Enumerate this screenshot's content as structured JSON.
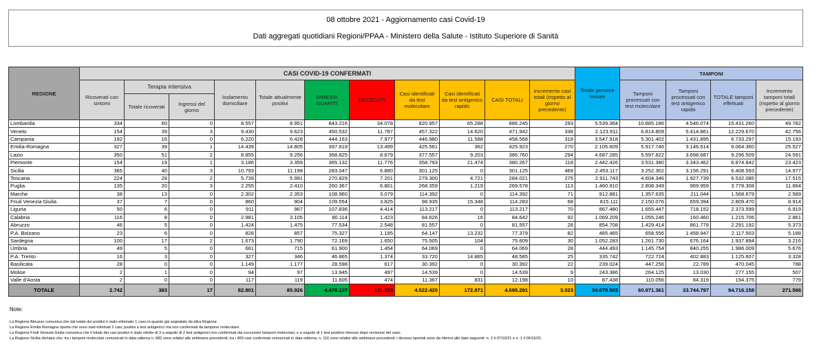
{
  "title": "08 ottobre 2021 - Aggiornamento casi Covid-19",
  "subtitle": "Dati aggregati quotidiani Regioni/PPAA - Ministero della Salute - Istituto Superiore di Sanità",
  "headers": {
    "regione": "REGIONE",
    "casi_group": "CASI COVID-19 CONFERMATI",
    "tamponi_group": "TAMPONI",
    "terapia_intensiva": "Terapia intensiva",
    "ricoverati": "Ricoverati con sintomi",
    "ti_totale": "Totale ricoverati",
    "ti_ingressi": "Ingressi del giorno",
    "isolamento": "Isolamento domiciliare",
    "positivi": "Totale attualmente positivi",
    "dimessi": "DIMESSI GUARITI",
    "deceduti": "DECEDUTI",
    "casi_mol": "Casi identificati da test molecolare",
    "casi_ant": "Casi identificati da test antigenico rapido",
    "casi_tot": "CASI TOTALI",
    "incr_casi": "Incremento casi totali (rispetto al giorno precedente)",
    "persone": "Totale persone testate",
    "tamp_mol": "Tamponi processati con test molecolare",
    "tamp_ant": "Tamponi processati con test antigenico rapido",
    "tamp_tot": "TOTALE tamponi effettuati",
    "incr_tamp": "Incremento tamponi totali (rispetto al giorno precedente)"
  },
  "rows": [
    [
      "Lombardia",
      "334",
      "60",
      "0",
      "8.557",
      "8.951",
      "843.216",
      "34.078",
      "820.957",
      "65.288",
      "886.245",
      "293",
      "5.539.364",
      "10.885.186",
      "4.546.074",
      "15.431.260",
      "49.782"
    ],
    [
      "Veneto",
      "154",
      "39",
      "3",
      "9.430",
      "9.623",
      "450.532",
      "11.787",
      "457.322",
      "14.620",
      "471.942",
      "338",
      "2.123.911",
      "6.814.809",
      "5.414.861",
      "12.229.670",
      "42.756"
    ],
    [
      "Campania",
      "192",
      "16",
      "0",
      "6.220",
      "6.428",
      "444.163",
      "7.977",
      "446.980",
      "11.588",
      "458.568",
      "318",
      "3.547.918",
      "5.301.402",
      "1.431.895",
      "6.733.297",
      "15.193"
    ],
    [
      "Emilia-Romagna",
      "327",
      "39",
      "1",
      "14.439",
      "14.805",
      "397.619",
      "13.499",
      "425.561",
      "362",
      "425.923",
      "270",
      "2.105.609",
      "5.917.746",
      "3.146.614",
      "9.064.360",
      "25.527"
    ],
    [
      "Lazio",
      "350",
      "51",
      "2",
      "8.855",
      "9.256",
      "368.825",
      "8.679",
      "377.557",
      "9.203",
      "386.760",
      "294",
      "4.687.285",
      "5.597.822",
      "3.698.687",
      "9.296.509",
      "24.591"
    ],
    [
      "Piemonte",
      "154",
      "19",
      "1",
      "3.186",
      "3.359",
      "365.132",
      "11.776",
      "358.793",
      "21.474",
      "380.267",
      "118",
      "2.442.426",
      "3.531.380",
      "3.343.462",
      "6.874.842",
      "23.423"
    ],
    [
      "Sicilia",
      "365",
      "40",
      "3",
      "10.793",
      "11.198",
      "283.047",
      "6.880",
      "301.125",
      "0",
      "301.125",
      "469",
      "2.453.117",
      "3.252.302",
      "3.156.291",
      "6.408.593",
      "14.977"
    ],
    [
      "Toscana",
      "224",
      "28",
      "2",
      "5.739",
      "5.991",
      "270.829",
      "7.201",
      "279.300",
      "4.721",
      "284.021",
      "275",
      "2.911.743",
      "4.604.346",
      "1.927.739",
      "6.532.085",
      "17.515"
    ],
    [
      "Puglia",
      "135",
      "20",
      "3",
      "2.255",
      "2.410",
      "260.367",
      "6.801",
      "268.359",
      "1.219",
      "269.578",
      "113",
      "1.460.910",
      "2.808.349",
      "969.959",
      "3.778.308",
      "11.664"
    ],
    [
      "Marche",
      "38",
      "13",
      "0",
      "2.302",
      "2.353",
      "108.960",
      "3.079",
      "114.392",
      "0",
      "114.392",
      "71",
      "912.881",
      "1.357.635",
      "211.044",
      "1.568.679",
      "2.589"
    ],
    [
      "Friuli Venezia Giulia",
      "37",
      "7",
      "0",
      "860",
      "904",
      "109.554",
      "3.825",
      "98.935",
      "15.348",
      "114.283",
      "68",
      "815.111",
      "2.150.076",
      "659.394",
      "2.809.470",
      "8.914"
    ],
    [
      "Liguria",
      "50",
      "6",
      "0",
      "911",
      "967",
      "107.836",
      "4.414",
      "113.217",
      "0",
      "113.217",
      "70",
      "867.480",
      "1.655.447",
      "718.152",
      "2.373.599",
      "6.919"
    ],
    [
      "Calabria",
      "116",
      "8",
      "0",
      "2.981",
      "3.105",
      "80.114",
      "1.423",
      "84.626",
      "16",
      "84.642",
      "92",
      "1.069.209",
      "1.055.246",
      "160.460",
      "1.215.706",
      "2.861"
    ],
    [
      "Abruzzo",
      "46",
      "5",
      "0",
      "1.424",
      "1.475",
      "77.534",
      "2.548",
      "81.557",
      "0",
      "81.557",
      "28",
      "854.708",
      "1.429.414",
      "861.778",
      "2.291.192",
      "5.373"
    ],
    [
      "P.A. Bolzano",
      "23",
      "6",
      "0",
      "828",
      "857",
      "75.327",
      "1.195",
      "64.147",
      "13.232",
      "77.379",
      "82",
      "485.465",
      "658.556",
      "1.458.947",
      "2.117.503",
      "5.188"
    ],
    [
      "Sardegna",
      "100",
      "17",
      "2",
      "1.673",
      "1.790",
      "72.169",
      "1.650",
      "75.505",
      "104",
      "75.609",
      "30",
      "1.052.283",
      "1.261.730",
      "676.164",
      "1.937.894",
      "3.216"
    ],
    [
      "Umbria",
      "49",
      "5",
      "0",
      "661",
      "715",
      "61.900",
      "1.454",
      "64.069",
      "0",
      "64.069",
      "28",
      "444.493",
      "1.145.754",
      "840.255",
      "1.986.009",
      "5.676"
    ],
    [
      "P.A. Trento",
      "16",
      "3",
      "0",
      "327",
      "346",
      "46.865",
      "1.374",
      "33.720",
      "14.865",
      "48.585",
      "25",
      "335.742",
      "722.724",
      "402.883",
      "1.125.607",
      "3.328"
    ],
    [
      "Basilicata",
      "28",
      "0",
      "0",
      "1.149",
      "1.177",
      "28.598",
      "617",
      "30.392",
      "0",
      "30.392",
      "22",
      "239.024",
      "447.256",
      "22.789",
      "470.045",
      "788"
    ],
    [
      "Molise",
      "2",
      "1",
      "0",
      "94",
      "97",
      "13.945",
      "497",
      "14.539",
      "0",
      "14.539",
      "9",
      "243.386",
      "264.125",
      "13.030",
      "277.155",
      "507"
    ],
    [
      "Valle d'Aosta",
      "2",
      "0",
      "0",
      "117",
      "119",
      "11.605",
      "474",
      "11.367",
      "831",
      "12.198",
      "10",
      "87.438",
      "110.056",
      "84.319",
      "194.375",
      "779"
    ]
  ],
  "total": [
    "TOTALE",
    "2.742",
    "383",
    "17",
    "82.801",
    "85.926",
    "4.478.137",
    "131.228",
    "4.522.420",
    "172.871",
    "4.695.291",
    "3.023",
    "34.679.503",
    "60.971.361",
    "33.744.797",
    "94.716.158",
    "271.566"
  ],
  "notes": {
    "heading": "Note:",
    "lines": [
      "La Regione Abruzzo comunica che dal totale dei positivi è stato eliminato 1 caso in quanto già segnalato da altra Regione.",
      "La Regione Emilia Romagna riporta che sono stati eliminati 2 casi, positivi a test antigenico ma non confermati da tampone molecolare.",
      "La Regione Friuli Venezia Giulia comunica che il totale dei casi positivi è stato ridotto di 3 a seguito di 2 test antigenici non confermati dai successivi tamponi molecolari, e a seguito di 1 test positivo rimosso dopo revisione del caso.",
      "La Regione Sicilia dichiara che: tra i tamponi molecolari comunicati in data odierna n. 682 sono relativi alle settimane precedenti; tra i 469 casi confermati comunicati in data odierna, n. 116 sono relativi alle settimane precedenti; i decessi riportati sono da riferirsi alle date seguenti: n. 2 il 07/10/21 e n. 1 il 06/10/21."
    ]
  },
  "colors": {
    "dimessi": "#00b050",
    "deceduti": "#ff0000",
    "casi": "#ffc000",
    "persone": "#00b0f0",
    "tamponi": "#b4c6e7"
  }
}
